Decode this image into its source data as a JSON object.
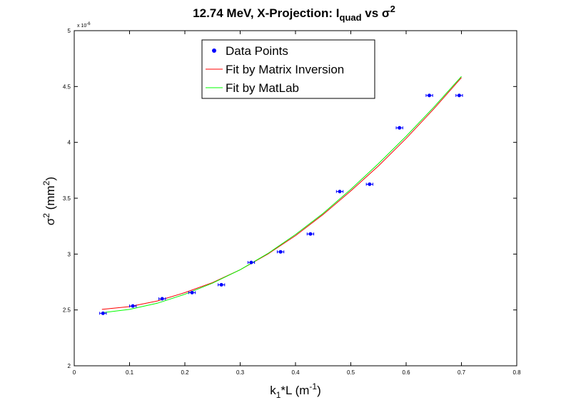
{
  "chart_data": {
    "type": "scatter",
    "title": {
      "text_main": "12.74 MeV, X-Projection: I",
      "text_sub": "quad",
      "text_vs": " vs σ",
      "text_sup": "2"
    },
    "xlabel": {
      "base": "k",
      "sub": "1",
      "mid": "*L (m",
      "sup": "-1",
      "end": ")"
    },
    "ylabel": {
      "base": "σ",
      "sup": "2",
      "mid": " (mm",
      "sup2": "2",
      "end": ")"
    },
    "y_multiplier": {
      "base": "x 10",
      "exp": "-6"
    },
    "xlim": [
      0,
      0.8
    ],
    "ylim": [
      2,
      5
    ],
    "xticks": [
      "0",
      "0.1",
      "0.2",
      "0.3",
      "0.4",
      "0.5",
      "0.6",
      "0.7",
      "0.8"
    ],
    "yticks": [
      "2",
      "2.5",
      "3",
      "3.5",
      "4",
      "4.5",
      "5"
    ],
    "xtick_values": [
      0,
      0.1,
      0.2,
      0.3,
      0.4,
      0.5,
      0.6,
      0.7,
      0.8
    ],
    "ytick_values": [
      2,
      2.5,
      3,
      3.5,
      4,
      4.5,
      5
    ],
    "grid": false,
    "legend_position": "top-center",
    "series": [
      {
        "name": "Data Points",
        "kind": "points",
        "color": "#0000ff",
        "x": [
          0.052,
          0.106,
          0.159,
          0.213,
          0.266,
          0.32,
          0.373,
          0.427,
          0.48,
          0.534,
          0.588,
          0.642,
          0.696
        ],
        "y": [
          2.47,
          2.535,
          2.6,
          2.655,
          2.725,
          2.925,
          3.02,
          3.18,
          3.56,
          3.625,
          4.13,
          4.42,
          4.42
        ],
        "xerr": 0.006
      },
      {
        "name": "Fit by Matrix Inversion",
        "kind": "line",
        "color": "#ff0000",
        "x": [
          0.05,
          0.1,
          0.15,
          0.2,
          0.25,
          0.3,
          0.35,
          0.4,
          0.45,
          0.5,
          0.55,
          0.6,
          0.65,
          0.7
        ],
        "y": [
          2.505,
          2.53,
          2.58,
          2.655,
          2.745,
          2.86,
          3.0,
          3.165,
          3.355,
          3.565,
          3.79,
          4.035,
          4.3,
          4.58
        ]
      },
      {
        "name": "Fit by MatLab",
        "kind": "line",
        "color": "#00ff00",
        "x": [
          0.05,
          0.1,
          0.15,
          0.2,
          0.25,
          0.3,
          0.35,
          0.4,
          0.45,
          0.5,
          0.55,
          0.6,
          0.65,
          0.7
        ],
        "y": [
          2.475,
          2.505,
          2.56,
          2.64,
          2.74,
          2.86,
          3.005,
          3.175,
          3.365,
          3.58,
          3.81,
          4.055,
          4.315,
          4.59
        ]
      }
    ]
  }
}
